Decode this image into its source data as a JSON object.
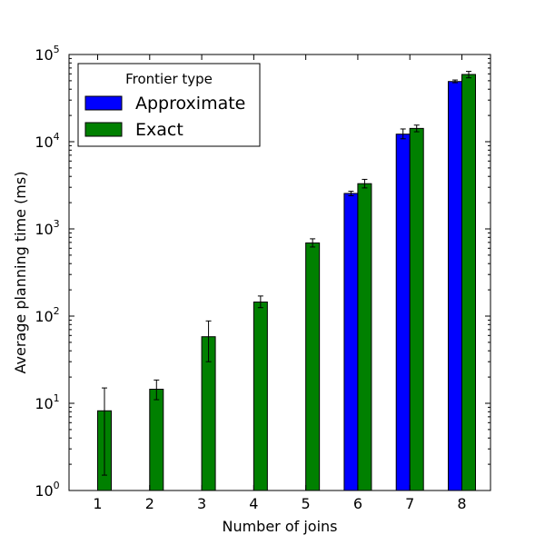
{
  "chart_data": {
    "type": "bar",
    "title": "",
    "xlabel": "Number of joins",
    "ylabel": "Average planning time (ms)",
    "yscale": "log",
    "ylim": [
      1,
      100000
    ],
    "categories": [
      "1",
      "2",
      "3",
      "4",
      "5",
      "6",
      "7",
      "8"
    ],
    "yticks": [
      {
        "base": "10",
        "exp": "0"
      },
      {
        "base": "10",
        "exp": "1"
      },
      {
        "base": "10",
        "exp": "2"
      },
      {
        "base": "10",
        "exp": "3"
      },
      {
        "base": "10",
        "exp": "4"
      },
      {
        "base": "10",
        "exp": "5"
      }
    ],
    "legend": {
      "title": "Frontier type",
      "placement": "top-left"
    },
    "grid": false,
    "series": [
      {
        "name": "Approximate",
        "color": "#0000ff",
        "values": [
          null,
          null,
          null,
          null,
          null,
          2550,
          12200,
          49000
        ],
        "err_low": [
          null,
          null,
          null,
          null,
          null,
          2400,
          10800,
          47500
        ],
        "err_high": [
          null,
          null,
          null,
          null,
          null,
          2700,
          14000,
          51000
        ]
      },
      {
        "name": "Exact",
        "color": "#008000",
        "values": [
          8.2,
          14.5,
          58,
          145,
          690,
          3300,
          14200,
          59000
        ],
        "err_low": [
          1.5,
          11,
          30,
          125,
          620,
          2950,
          13000,
          54000
        ],
        "err_high": [
          15,
          18.5,
          88,
          170,
          770,
          3700,
          15500,
          64000
        ]
      }
    ]
  }
}
